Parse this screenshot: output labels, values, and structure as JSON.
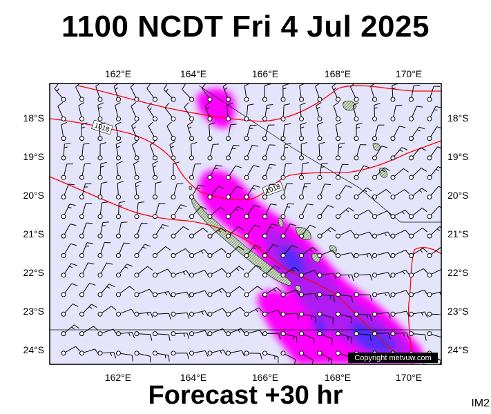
{
  "title": "1100 NCDT Fri 4 Jul 2025",
  "footer": "Forecast +30 hr",
  "image_id": "IM2",
  "copyright": "Copyright metvuw.com",
  "axes": {
    "lon_labels": [
      "162°E",
      "164°E",
      "166°E",
      "168°E",
      "170°E"
    ],
    "lon_values": [
      162,
      164,
      166,
      168,
      170
    ],
    "lat_labels": [
      "18°S",
      "19°S",
      "20°S",
      "21°S",
      "22°S",
      "23°S",
      "24°S"
    ],
    "lat_values": [
      -18,
      -19,
      -20,
      -21,
      -22,
      -23,
      -24
    ],
    "lon_range": [
      160.0,
      171.0
    ],
    "lat_range": [
      -17.3,
      -24.4
    ]
  },
  "isobar_labels": [
    "1018",
    "1018"
  ],
  "colors": {
    "background": "#e4e4fb",
    "isobar": "#ff0000",
    "rain_light": "#ff00ff",
    "rain_medium": "#a020f0",
    "rain_heavy": "#3a30ff",
    "land": "#cfd9c4",
    "wind_barb": "#000000"
  }
}
